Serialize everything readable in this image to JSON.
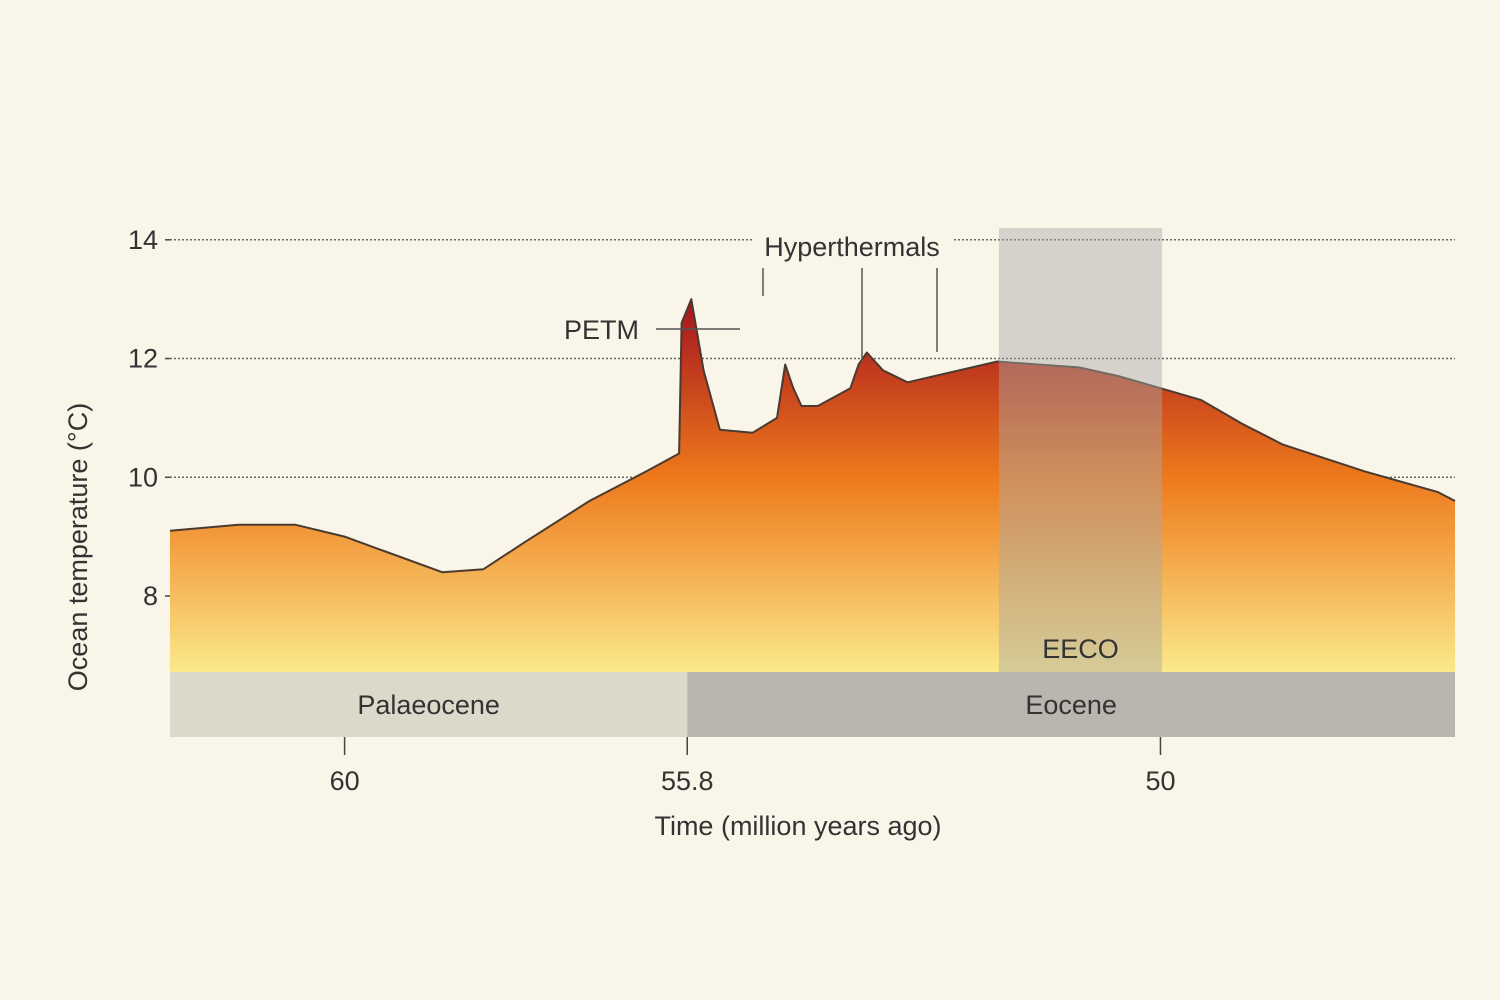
{
  "chart_data": {
    "type": "area",
    "xlabel": "Time (million years ago)",
    "ylabel": "Ocean temperature (°C)",
    "x_reversed": true,
    "xlim": [
      62.14,
      46.39
    ],
    "ylim": [
      6.72,
      14.3
    ],
    "y_ticks": [
      8,
      10,
      12,
      14
    ],
    "x_ticks": [
      {
        "value": 60,
        "label": "60"
      },
      {
        "value": 55.8,
        "label": "55.8"
      },
      {
        "value": 50,
        "label": "50"
      }
    ],
    "grid": "horizontal dotted",
    "series": [
      {
        "x": [
          62.14,
          61.3,
          60.6,
          60.0,
          59.5,
          58.8,
          58.3,
          57.8,
          57.0,
          56.3,
          55.9,
          55.87,
          55.75,
          55.6,
          55.4,
          55.0,
          54.7,
          54.6,
          54.5,
          54.4,
          54.2,
          53.8,
          53.7,
          53.6,
          53.4,
          53.1,
          52.0,
          51.5,
          51.0,
          50.5,
          50.0,
          49.5,
          49.0,
          48.5,
          47.5,
          46.6,
          46.39
        ],
        "y": [
          9.1,
          9.2,
          9.2,
          9.0,
          8.75,
          8.4,
          8.45,
          8.9,
          9.6,
          10.1,
          10.4,
          12.6,
          13.0,
          11.8,
          10.8,
          10.75,
          11.0,
          11.9,
          11.5,
          11.2,
          11.2,
          11.5,
          11.9,
          12.1,
          11.8,
          11.6,
          11.95,
          11.9,
          11.85,
          11.7,
          11.5,
          11.3,
          10.9,
          10.55,
          10.1,
          9.75,
          9.6
        ]
      }
    ],
    "shaded_region": {
      "x_start": 51.98,
      "x_end": 49.98,
      "label": "EECO"
    },
    "epochs": [
      {
        "name": "Palaeocene",
        "x_start": 62.14,
        "x_end": 55.8
      },
      {
        "name": "Eocene",
        "x_start": 55.8,
        "x_end": 46.39
      }
    ],
    "annotations": [
      {
        "text": "PETM",
        "x": 55.8
      },
      {
        "text": "Hyperthermals",
        "x": [
          55.8,
          54.6,
          53.6
        ]
      }
    ],
    "colors": {
      "background": "#f9f5e8",
      "gradient_top": "#a4121e",
      "gradient_mid": "#ee7a1c",
      "gradient_bottom": "#fbe98a",
      "line": "#4a3a30",
      "grid": "#666666",
      "eeco_shade": "#a9a9a9",
      "palaeocene_band": "#dcd9cb",
      "eocene_band": "#b8b6ae"
    }
  }
}
